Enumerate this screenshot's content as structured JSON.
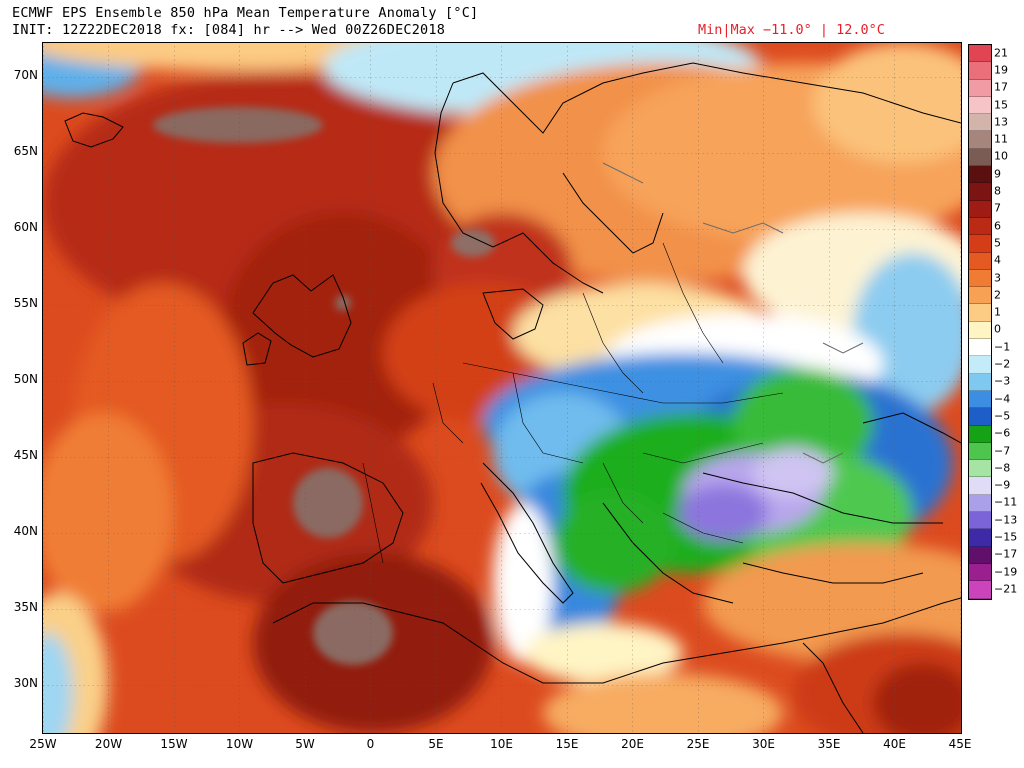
{
  "header": {
    "title_line1": "ECMWF EPS Ensemble 850 hPa Mean Temperature Anomaly [°C]",
    "title_line2": "INIT: 12Z22DEC2018 fx: [084] hr --> Wed 00Z26DEC2018",
    "minmax": "Min|Max −11.0° | 12.0°C"
  },
  "axes": {
    "lat_labels": [
      "70N",
      "65N",
      "60N",
      "55N",
      "50N",
      "45N",
      "40N",
      "35N",
      "30N"
    ],
    "lon_labels": [
      "25W",
      "20W",
      "15W",
      "10W",
      "5W",
      "0",
      "5E",
      "10E",
      "15E",
      "20E",
      "25E",
      "30E",
      "35E",
      "40E",
      "45E"
    ]
  },
  "colorbar": {
    "levels": [
      {
        "label": "21",
        "color": "#e14452"
      },
      {
        "label": "19",
        "color": "#eb6f7b"
      },
      {
        "label": "17",
        "color": "#f19ca4"
      },
      {
        "label": "15",
        "color": "#f6c3c7"
      },
      {
        "label": "13",
        "color": "#d3b4ab"
      },
      {
        "label": "11",
        "color": "#a6857c"
      },
      {
        "label": "10",
        "color": "#7b5c55"
      },
      {
        "label": "9",
        "color": "#5b1010"
      },
      {
        "label": "8",
        "color": "#7d1414"
      },
      {
        "label": "7",
        "color": "#9e1c14"
      },
      {
        "label": "6",
        "color": "#bb2a14"
      },
      {
        "label": "5",
        "color": "#d43d18"
      },
      {
        "label": "4",
        "color": "#e55a22"
      },
      {
        "label": "3",
        "color": "#f07c33"
      },
      {
        "label": "2",
        "color": "#f7a154"
      },
      {
        "label": "1",
        "color": "#fccb84"
      },
      {
        "label": "0",
        "color": "#fff4c4"
      },
      {
        "label": "−1",
        "color": "#ffffff"
      },
      {
        "label": "−2",
        "color": "#c4ecf8"
      },
      {
        "label": "−3",
        "color": "#7fc8f0"
      },
      {
        "label": "−4",
        "color": "#3c8ee2"
      },
      {
        "label": "−5",
        "color": "#1e5ec8"
      },
      {
        "label": "−6",
        "color": "#16a216"
      },
      {
        "label": "−7",
        "color": "#4ec64e"
      },
      {
        "label": "−8",
        "color": "#a6e4a6"
      },
      {
        "label": "−9",
        "color": "#e0dcf8"
      },
      {
        "label": "−11",
        "color": "#aaa0ea"
      },
      {
        "label": "−13",
        "color": "#7a64d8"
      },
      {
        "label": "−15",
        "color": "#3e2aa6"
      },
      {
        "label": "−17",
        "color": "#60106a"
      },
      {
        "label": "−19",
        "color": "#9a2090"
      },
      {
        "label": "−21",
        "color": "#cc44bc"
      }
    ],
    "tick_labels": [
      "21",
      "19",
      "17",
      "15",
      "13",
      "11",
      "10",
      "9",
      "8",
      "7",
      "6",
      "5",
      "4",
      "3",
      "2",
      "1",
      "0",
      "−1",
      "−2",
      "−3",
      "−4",
      "−5",
      "−6",
      "−7",
      "−8",
      "−9",
      "−11",
      "−13",
      "−15",
      "−17",
      "−19",
      "−21"
    ]
  }
}
